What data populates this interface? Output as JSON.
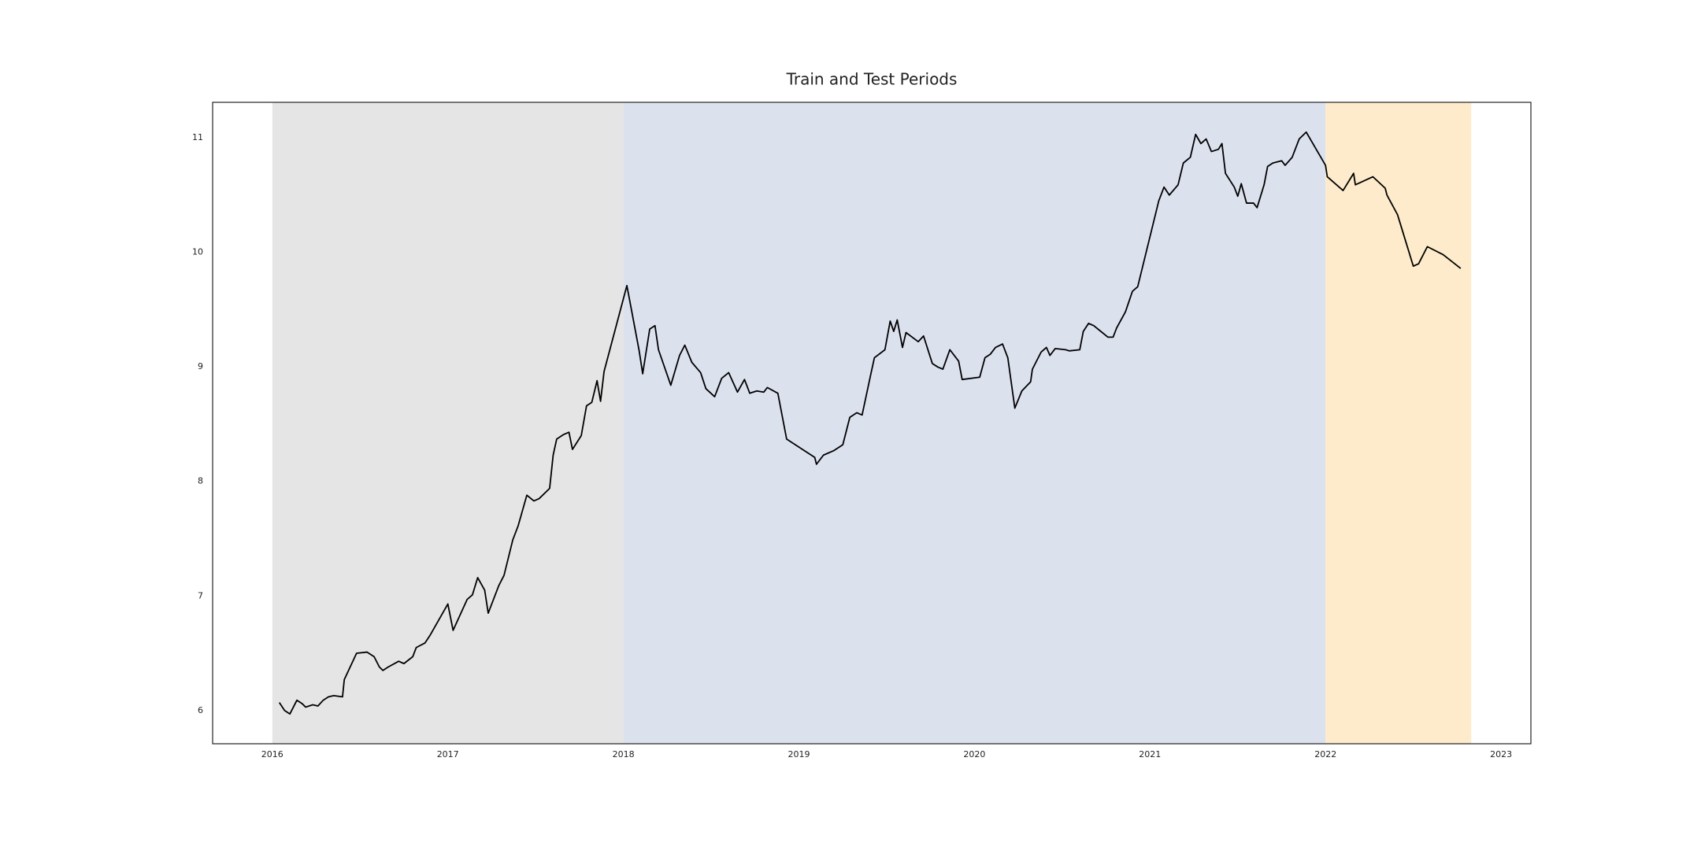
{
  "chart_data": {
    "type": "line",
    "title": "Train and Test Periods",
    "x": [
      2016.04,
      2016.07,
      2016.1,
      2016.14,
      2016.17,
      2016.19,
      2016.23,
      2016.26,
      2016.29,
      2016.32,
      2016.35,
      2016.4,
      2016.41,
      2016.48,
      2016.54,
      2016.58,
      2016.61,
      2016.63,
      2016.66,
      2016.72,
      2016.75,
      2016.8,
      2016.82,
      2016.87,
      2016.9,
      2017.0,
      2017.03,
      2017.11,
      2017.14,
      2017.17,
      2017.21,
      2017.23,
      2017.29,
      2017.32,
      2017.37,
      2017.4,
      2017.45,
      2017.49,
      2017.52,
      2017.58,
      2017.6,
      2017.62,
      2017.66,
      2017.69,
      2017.71,
      2017.76,
      2017.79,
      2017.82,
      2017.85,
      2017.87,
      2017.89,
      2018.02,
      2018.09,
      2018.11,
      2018.15,
      2018.18,
      2018.2,
      2018.27,
      2018.32,
      2018.35,
      2018.39,
      2018.44,
      2018.47,
      2018.52,
      2018.56,
      2018.6,
      2018.65,
      2018.69,
      2018.72,
      2018.76,
      2018.8,
      2018.82,
      2018.88,
      2018.93,
      2019.09,
      2019.1,
      2019.14,
      2019.2,
      2019.25,
      2019.29,
      2019.33,
      2019.36,
      2019.41,
      2019.43,
      2019.49,
      2019.52,
      2019.54,
      2019.56,
      2019.59,
      2019.61,
      2019.68,
      2019.71,
      2019.76,
      2019.79,
      2019.82,
      2019.86,
      2019.91,
      2019.93,
      2020.03,
      2020.06,
      2020.09,
      2020.12,
      2020.16,
      2020.19,
      2020.23,
      2020.27,
      2020.32,
      2020.33,
      2020.38,
      2020.41,
      2020.43,
      2020.46,
      2020.52,
      2020.54,
      2020.6,
      2020.62,
      2020.65,
      2020.68,
      2020.76,
      2020.79,
      2020.81,
      2020.86,
      2020.9,
      2020.93,
      2021.05,
      2021.08,
      2021.11,
      2021.16,
      2021.19,
      2021.23,
      2021.26,
      2021.29,
      2021.32,
      2021.35,
      2021.39,
      2021.41,
      2021.43,
      2021.48,
      2021.5,
      2021.52,
      2021.55,
      2021.59,
      2021.61,
      2021.65,
      2021.67,
      2021.7,
      2021.75,
      2021.77,
      2021.81,
      2021.85,
      2021.89,
      2022.0,
      2022.01,
      2022.1,
      2022.16,
      2022.17,
      2022.27,
      2022.34,
      2022.35,
      2022.41,
      2022.5,
      2022.53,
      2022.58,
      2022.67,
      2022.77
    ],
    "values": [
      6.07,
      6.0,
      5.97,
      6.09,
      6.06,
      6.03,
      6.05,
      6.04,
      6.09,
      6.12,
      6.13,
      6.12,
      6.27,
      6.5,
      6.51,
      6.47,
      6.38,
      6.35,
      6.38,
      6.43,
      6.41,
      6.47,
      6.55,
      6.59,
      6.66,
      6.93,
      6.7,
      6.97,
      7.01,
      7.16,
      7.05,
      6.85,
      7.09,
      7.18,
      7.49,
      7.61,
      7.88,
      7.83,
      7.85,
      7.94,
      8.23,
      8.37,
      8.41,
      8.43,
      8.28,
      8.4,
      8.66,
      8.69,
      8.88,
      8.7,
      8.96,
      9.71,
      9.14,
      8.94,
      9.33,
      9.36,
      9.15,
      8.84,
      9.1,
      9.19,
      9.04,
      8.95,
      8.81,
      8.74,
      8.9,
      8.95,
      8.78,
      8.89,
      8.77,
      8.79,
      8.78,
      8.82,
      8.77,
      8.37,
      8.21,
      8.15,
      8.23,
      8.27,
      8.32,
      8.56,
      8.6,
      8.58,
      8.94,
      9.08,
      9.15,
      9.4,
      9.31,
      9.41,
      9.17,
      9.3,
      9.22,
      9.27,
      9.03,
      9.0,
      8.98,
      9.15,
      9.05,
      8.89,
      8.91,
      9.08,
      9.11,
      9.17,
      9.2,
      9.08,
      8.64,
      8.79,
      8.87,
      8.98,
      9.13,
      9.17,
      9.1,
      9.16,
      9.15,
      9.14,
      9.15,
      9.31,
      9.38,
      9.36,
      9.26,
      9.26,
      9.34,
      9.48,
      9.66,
      9.7,
      10.45,
      10.57,
      10.5,
      10.59,
      10.78,
      10.83,
      11.03,
      10.95,
      10.99,
      10.88,
      10.9,
      10.95,
      10.69,
      10.57,
      10.49,
      10.6,
      10.43,
      10.43,
      10.39,
      10.59,
      10.75,
      10.78,
      10.8,
      10.76,
      10.83,
      10.99,
      11.05,
      10.76,
      10.66,
      10.54,
      10.69,
      10.59,
      10.66,
      10.56,
      10.5,
      10.33,
      9.88,
      9.9,
      10.05,
      9.98,
      9.86
    ],
    "color": "#000000",
    "spans": [
      {
        "start": 2016.0,
        "end": 2018.0,
        "color": "#e5e5e5"
      },
      {
        "start": 2018.0,
        "end": 2022.0,
        "color": "#dce1ee"
      },
      {
        "start": 2022.0,
        "end": 2022.83,
        "color": "#fdebcb"
      }
    ],
    "xlim": [
      2015.66,
      2023.17
    ],
    "xticks": [
      2016,
      2017,
      2018,
      2019,
      2020,
      2021,
      2022,
      2023
    ],
    "ylim": [
      5.71,
      11.31
    ],
    "yticks": [
      6,
      7,
      8,
      9,
      10,
      11
    ],
    "grid": false
  }
}
